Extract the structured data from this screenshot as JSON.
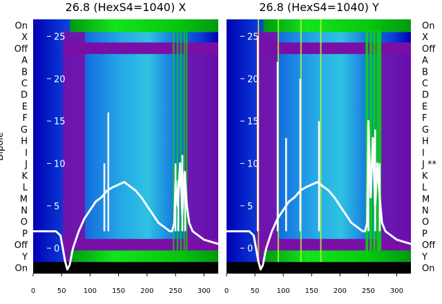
{
  "chart_data": [
    {
      "type": "heatmap",
      "title": "26.8 (HexS4=1040) X",
      "ylabel": "Dipole",
      "row_labels": [
        "On",
        "X",
        "Off",
        "A",
        "B",
        "C",
        "D",
        "E",
        "F",
        "G",
        "H",
        "I",
        "J",
        "K",
        "L",
        "M",
        "N",
        "O",
        "P",
        "Off",
        "Y",
        "On"
      ],
      "x_ticks": [
        0,
        50,
        100,
        150,
        200,
        250,
        300
      ],
      "xlim": [
        0,
        325
      ],
      "overlay_yticks": [
        0,
        5,
        10,
        15,
        20,
        25
      ],
      "overlay_ylim": [
        -3,
        27
      ],
      "overlay_color": "#ffffff",
      "overlay_line": {
        "x": [
          0,
          20,
          40,
          48,
          52,
          56,
          60,
          64,
          70,
          80,
          90,
          100,
          110,
          120,
          130,
          140,
          150,
          160,
          170,
          180,
          190,
          200,
          210,
          220,
          230,
          240,
          244,
          248,
          250,
          254,
          258,
          262,
          266,
          270,
          274,
          280,
          300,
          325
        ],
        "y": [
          2,
          2,
          2,
          1.5,
          0,
          -1.5,
          -2.5,
          -2,
          0,
          2,
          3.5,
          4.5,
          5.5,
          6,
          6.8,
          7.2,
          7.5,
          7.8,
          7.3,
          6.8,
          6,
          5,
          4,
          3,
          2.5,
          2,
          2,
          3,
          8,
          5,
          10,
          4,
          9,
          5,
          3,
          2,
          1,
          0.5
        ]
      },
      "spikes": [
        {
          "x": 125,
          "y": 10
        },
        {
          "x": 132,
          "y": 16
        },
        {
          "x": 250,
          "y": 10
        },
        {
          "x": 255,
          "y": 8
        },
        {
          "x": 262,
          "y": 11
        },
        {
          "x": 267,
          "y": 9
        }
      ]
    },
    {
      "type": "heatmap",
      "title": "26.8 (HexS4=1040) Y",
      "row_labels": [
        "On",
        "X",
        "Off",
        "A",
        "B",
        "C",
        "D",
        "E",
        "F",
        "G",
        "H",
        "I",
        "J **",
        "K",
        "L",
        "M",
        "N",
        "O",
        "P",
        "Off",
        "Y",
        "On"
      ],
      "x_ticks": [
        0,
        50,
        100,
        150,
        200,
        250,
        300
      ],
      "xlim": [
        0,
        325
      ],
      "overlay_yticks": [
        0,
        5,
        10,
        15,
        20,
        25
      ],
      "overlay_ylim": [
        -3,
        27
      ],
      "overlay_color": "#ffffff",
      "overlay_line": {
        "x": [
          0,
          20,
          40,
          48,
          52,
          56,
          60,
          64,
          70,
          80,
          90,
          100,
          110,
          120,
          130,
          140,
          150,
          160,
          170,
          180,
          190,
          200,
          210,
          220,
          230,
          240,
          244,
          248,
          250,
          254,
          258,
          262,
          266,
          270,
          274,
          280,
          300,
          325
        ],
        "y": [
          2,
          2,
          2,
          1.5,
          0,
          -1.5,
          -2.5,
          -2,
          0,
          2,
          3.5,
          4.5,
          5.5,
          6,
          6.8,
          7.2,
          7.5,
          7.8,
          7.3,
          6.8,
          6,
          5,
          4,
          3,
          2.5,
          2,
          2,
          3,
          15,
          6,
          13,
          5,
          10,
          6,
          3,
          2,
          1,
          0.5
        ]
      },
      "spikes": [
        {
          "x": 55,
          "y": 25
        },
        {
          "x": 90,
          "y": 22
        },
        {
          "x": 105,
          "y": 13
        },
        {
          "x": 130,
          "y": 20
        },
        {
          "x": 163,
          "y": 15
        },
        {
          "x": 250,
          "y": 15
        },
        {
          "x": 262,
          "y": 14
        },
        {
          "x": 270,
          "y": 10
        }
      ]
    }
  ],
  "colors": {
    "dark_blue": "#0000b4",
    "blue": "#0a3fd8",
    "mid_blue": "#1779e0",
    "light_blue": "#25a9e6",
    "cyan_blue": "#2fc3e2",
    "purple": "#7a0fa8",
    "green": "#0ad60a",
    "white": "#ffffff",
    "black": "#000000"
  }
}
